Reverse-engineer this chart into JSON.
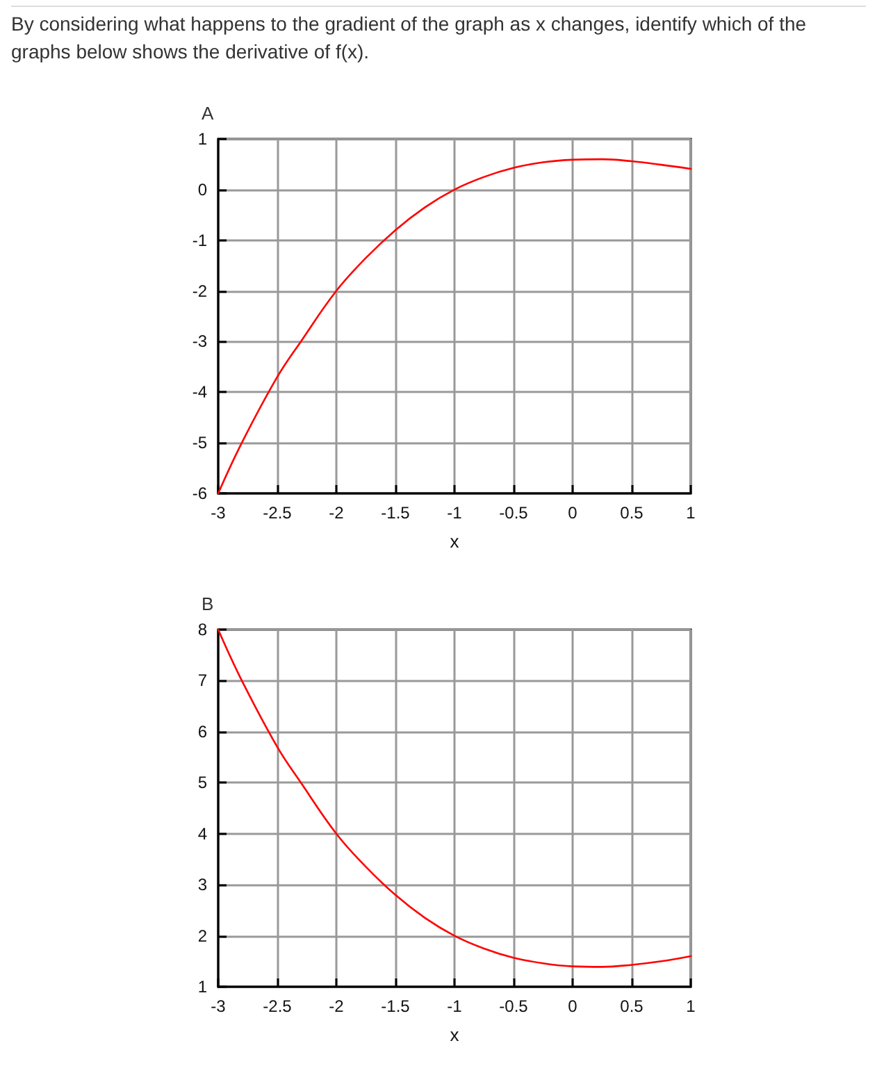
{
  "chart_data": [
    {
      "type": "line",
      "title": "A",
      "xlabel": "x",
      "annotations": [
        "By considering what happens to the gradient of the graph as x changes, identify which of the graphs below shows the derivative of f(x)."
      ],
      "x": [
        -3,
        -2.8,
        -2.5,
        -2.3,
        -2,
        -1.75,
        -1.5,
        -1.25,
        -1,
        -0.75,
        -0.5,
        -0.25,
        0,
        0.25,
        0.5,
        0.75,
        1
      ],
      "series": [
        {
          "color": "#ff0000",
          "values": [
            -6,
            -5,
            -3.7,
            -3,
            -2,
            -1.35,
            -0.8,
            -0.35,
            0,
            0.25,
            0.43,
            0.54,
            0.59,
            0.6,
            0.56,
            0.49,
            0.41
          ]
        }
      ],
      "xlim": [
        -3,
        1
      ],
      "ylim": [
        -6,
        1
      ],
      "xticks": [
        -3,
        -2.5,
        -2,
        -1.5,
        -1,
        -0.5,
        0,
        0.5,
        1
      ],
      "yticks": [
        -6,
        -5,
        -4,
        -3,
        -2,
        -1,
        0,
        1
      ],
      "grid": true,
      "marker": "none"
    },
    {
      "type": "line",
      "title": "B",
      "xlabel": "x",
      "x": [
        -3,
        -2.8,
        -2.5,
        -2.3,
        -2,
        -1.75,
        -1.5,
        -1.25,
        -1,
        -0.75,
        -0.5,
        -0.25,
        0,
        0.25,
        0.5,
        0.75,
        1
      ],
      "series": [
        {
          "color": "#ff0000",
          "values": [
            8,
            7,
            5.7,
            5,
            4,
            3.35,
            2.8,
            2.35,
            2,
            1.75,
            1.57,
            1.46,
            1.4,
            1.39,
            1.43,
            1.5,
            1.6
          ]
        }
      ],
      "xlim": [
        -3,
        1
      ],
      "ylim": [
        1,
        8
      ],
      "xticks": [
        -3,
        -2.5,
        -2,
        -1.5,
        -1,
        -0.5,
        0,
        0.5,
        1
      ],
      "yticks": [
        1,
        2,
        3,
        4,
        5,
        6,
        7,
        8
      ],
      "grid": true,
      "marker": "none"
    }
  ]
}
